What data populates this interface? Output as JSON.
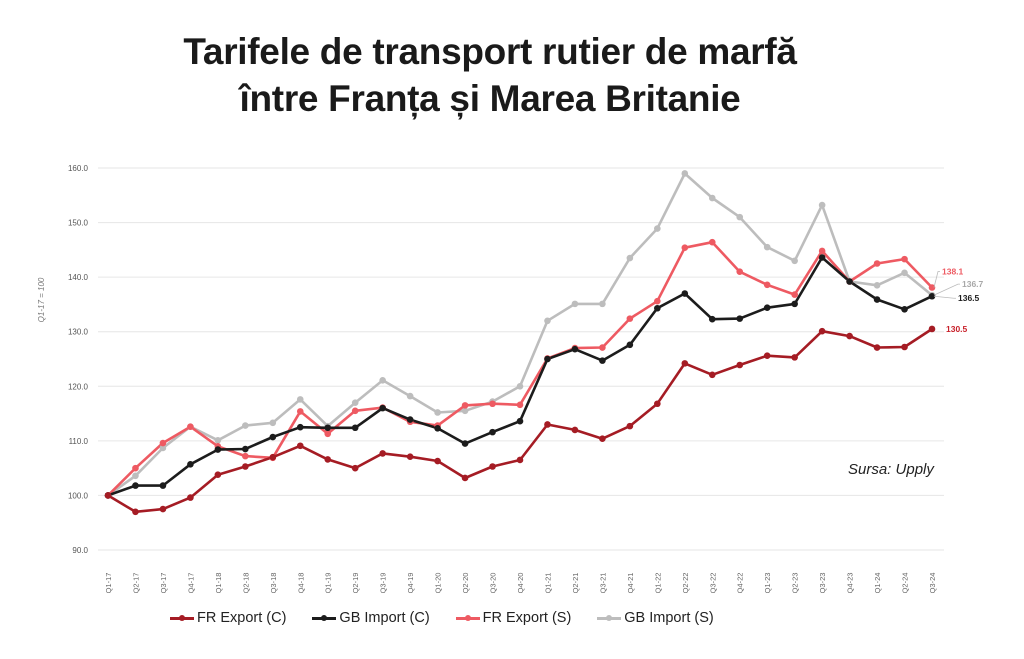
{
  "chart_data": {
    "type": "line",
    "title": [
      "Tarifele de transport rutier de marfă",
      "între Franța și Marea Britanie"
    ],
    "ylabel": "Q1-17 = 100",
    "xlabel": "",
    "ylim": [
      90,
      160
    ],
    "yticks": [
      "90.0",
      "100.0",
      "110.0",
      "120.0",
      "130.0",
      "140.0",
      "150.0",
      "160.0"
    ],
    "grid": true,
    "legend_position": "bottom",
    "source": "Sursa: Upply",
    "categories": [
      "Q1-17",
      "Q2-17",
      "Q3-17",
      "Q4-17",
      "Q1-18",
      "Q2-18",
      "Q3-18",
      "Q4-18",
      "Q1-19",
      "Q2-19",
      "Q3-19",
      "Q4-19",
      "Q1-20",
      "Q2-20",
      "Q3-20",
      "Q4-20",
      "Q1-21",
      "Q2-21",
      "Q3-21",
      "Q4-21",
      "Q1-22",
      "Q2-22",
      "Q3-22",
      "Q4-22",
      "Q1-23",
      "Q2-23",
      "Q3-23",
      "Q4-23",
      "Q1-24",
      "Q2-24",
      "Q3-24"
    ],
    "series": [
      {
        "name": "FR Export (C)",
        "color": "#a51c24",
        "end_label": "130.5",
        "label_color": "#c8202a",
        "values": [
          100.0,
          97.0,
          97.5,
          99.6,
          103.8,
          105.3,
          107.0,
          109.1,
          106.6,
          105.0,
          107.7,
          107.1,
          106.3,
          103.2,
          105.3,
          106.5,
          113.0,
          112.0,
          110.4,
          112.7,
          116.8,
          124.2,
          122.1,
          123.9,
          125.6,
          125.3,
          130.1,
          129.2,
          127.1,
          127.2,
          130.5
        ]
      },
      {
        "name": "GB Import (C)",
        "color": "#1c1c1c",
        "end_label": "136.5",
        "label_color": "#1c1c1c",
        "values": [
          100.0,
          101.8,
          101.8,
          105.7,
          108.4,
          108.5,
          110.7,
          112.5,
          112.4,
          112.4,
          116.0,
          113.9,
          112.3,
          109.5,
          111.6,
          113.6,
          125.0,
          126.8,
          124.7,
          127.6,
          134.3,
          137.0,
          132.3,
          132.4,
          134.4,
          135.1,
          143.6,
          139.2,
          135.9,
          134.1,
          136.5
        ]
      },
      {
        "name": "FR Export (S)",
        "color": "#ee5a62",
        "end_label": "138.1",
        "label_color": "#ee5a62",
        "values": [
          100.0,
          105.0,
          109.6,
          112.6,
          109.0,
          107.2,
          106.9,
          115.4,
          111.3,
          115.5,
          116.1,
          113.5,
          112.8,
          116.5,
          116.8,
          116.6,
          125.1,
          127.0,
          127.1,
          132.4,
          135.6,
          145.4,
          146.4,
          141.0,
          138.6,
          136.8,
          144.8,
          139.2,
          142.5,
          143.3,
          138.1
        ]
      },
      {
        "name": "GB Import (S)",
        "color": "#bdbdbd",
        "end_label": "136.7",
        "label_color": "#a8a8a8",
        "values": [
          100.0,
          103.6,
          108.7,
          112.6,
          110.1,
          112.8,
          113.3,
          117.6,
          112.7,
          117.0,
          121.1,
          118.2,
          115.2,
          115.5,
          117.2,
          120.0,
          132.0,
          135.1,
          135.1,
          143.5,
          148.9,
          159.0,
          154.5,
          151.0,
          145.5,
          143.0,
          153.2,
          139.2,
          138.5,
          140.8,
          136.7
        ]
      }
    ]
  }
}
